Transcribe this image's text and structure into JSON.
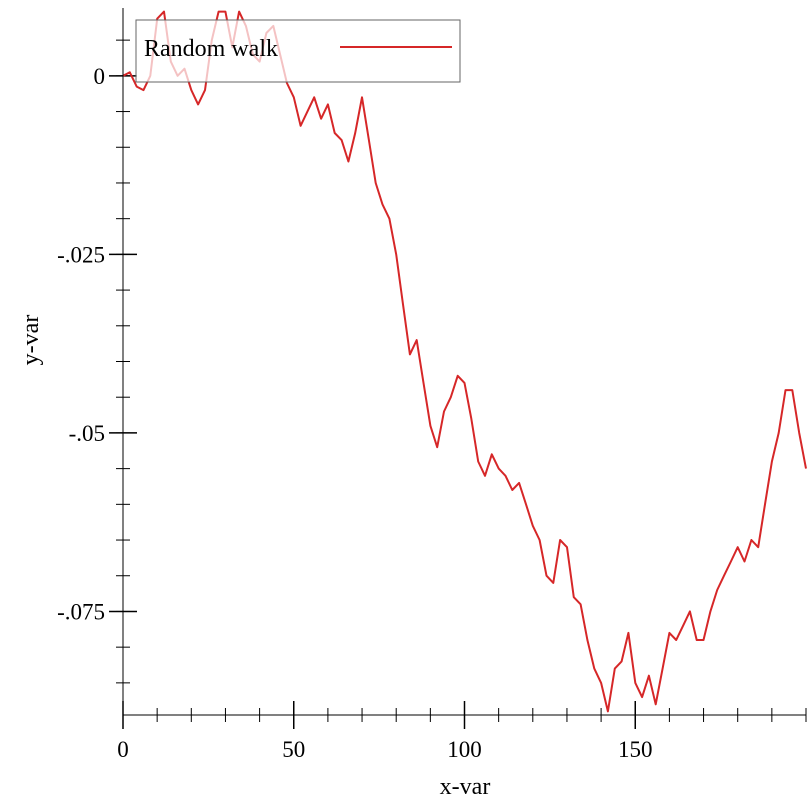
{
  "chart_data": {
    "type": "line",
    "xlabel": "x-var",
    "ylabel": "y-var",
    "xlim": [
      0,
      200
    ],
    "ylim": [
      -0.0895,
      0.0095
    ],
    "grid": false,
    "legend": {
      "placement": "top-left",
      "entries": [
        "Random walk"
      ]
    },
    "x_ticks": [
      {
        "value": 0,
        "label": "0"
      },
      {
        "value": 50,
        "label": "50"
      },
      {
        "value": 100,
        "label": "100"
      },
      {
        "value": 150,
        "label": "150"
      }
    ],
    "y_ticks": [
      {
        "value": 0,
        "label": "0"
      },
      {
        "value": -0.025,
        "label": "-.025"
      },
      {
        "value": -0.05,
        "label": "-.05"
      },
      {
        "value": -0.075,
        "label": "-.075"
      }
    ],
    "series": [
      {
        "name": "Random walk",
        "color": "#d62728",
        "x": [
          0,
          2,
          4,
          6,
          8,
          10,
          12,
          14,
          16,
          18,
          20,
          22,
          24,
          26,
          28,
          30,
          32,
          34,
          36,
          38,
          40,
          42,
          44,
          46,
          48,
          50,
          52,
          54,
          56,
          58,
          60,
          62,
          64,
          66,
          68,
          70,
          72,
          74,
          76,
          78,
          80,
          82,
          84,
          86,
          88,
          90,
          92,
          94,
          96,
          98,
          100,
          102,
          104,
          106,
          108,
          110,
          112,
          114,
          116,
          118,
          120,
          122,
          124,
          126,
          128,
          130,
          132,
          134,
          136,
          138,
          140,
          142,
          144,
          146,
          148,
          150,
          152,
          154,
          156,
          158,
          160,
          162,
          164,
          166,
          168,
          170,
          172,
          174,
          176,
          178,
          180,
          182,
          184,
          186,
          188,
          190,
          192,
          194,
          196,
          198,
          200
        ],
        "y": [
          0.0,
          0.0005,
          -0.0015,
          -0.002,
          0.0,
          0.008,
          0.009,
          0.002,
          0.0,
          0.001,
          -0.002,
          -0.004,
          -0.002,
          0.005,
          0.009,
          0.009,
          0.004,
          0.009,
          0.007,
          0.003,
          0.002,
          0.006,
          0.007,
          0.003,
          -0.001,
          -0.003,
          -0.007,
          -0.005,
          -0.003,
          -0.006,
          -0.004,
          -0.008,
          -0.009,
          -0.012,
          -0.008,
          -0.003,
          -0.009,
          -0.015,
          -0.018,
          -0.02,
          -0.025,
          -0.032,
          -0.039,
          -0.037,
          -0.043,
          -0.049,
          -0.052,
          -0.047,
          -0.045,
          -0.042,
          -0.043,
          -0.048,
          -0.054,
          -0.056,
          -0.053,
          -0.055,
          -0.056,
          -0.058,
          -0.057,
          -0.06,
          -0.063,
          -0.065,
          -0.07,
          -0.071,
          -0.065,
          -0.066,
          -0.073,
          -0.074,
          -0.079,
          -0.083,
          -0.085,
          -0.089,
          -0.083,
          -0.082,
          -0.078,
          -0.085,
          -0.087,
          -0.084,
          -0.088,
          -0.083,
          -0.078,
          -0.079,
          -0.077,
          -0.075,
          -0.079,
          -0.079,
          -0.075,
          -0.072,
          -0.07,
          -0.068,
          -0.066,
          -0.068,
          -0.065,
          -0.066,
          -0.06,
          -0.054,
          -0.05,
          -0.044,
          -0.044,
          -0.05,
          -0.055
        ]
      }
    ]
  }
}
